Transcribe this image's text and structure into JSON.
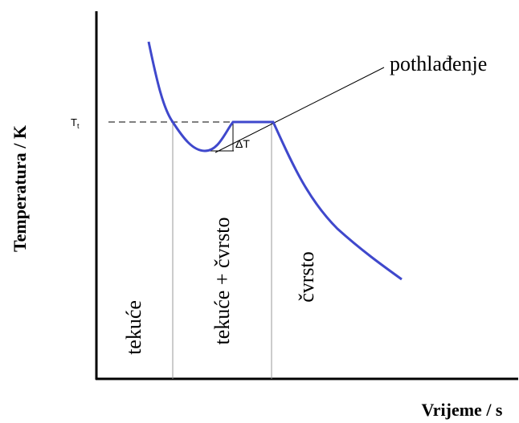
{
  "axes": {
    "y_label": "Temperatura / K",
    "x_label": "Vrijeme / s"
  },
  "temperature_label": {
    "base": "T",
    "sub": "t"
  },
  "annotations": {
    "supercooling": "pothlađenje",
    "delta": "ΔT"
  },
  "regions": [
    "tekuće",
    "tekuće + čvrsto",
    "čvrsto"
  ]
}
